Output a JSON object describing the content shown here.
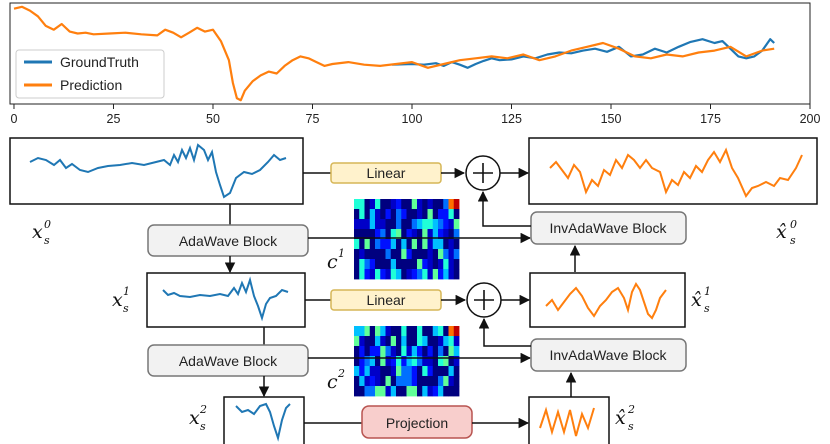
{
  "chart_data": {
    "type": "line",
    "title": "",
    "xlabel": "",
    "ylabel": "",
    "xlim": [
      -1,
      200
    ],
    "x_ticks": [
      0,
      25,
      50,
      75,
      100,
      125,
      150,
      175,
      200
    ],
    "legend_position": "bottom-left",
    "grid": false,
    "series": [
      {
        "name": "GroundTruth",
        "color": "#1f77b4",
        "x": [
          95,
          100,
          103,
          106,
          108,
          110,
          112,
          114,
          116,
          118,
          120,
          122,
          125,
          128,
          131,
          134,
          137,
          140,
          143,
          146,
          149,
          152,
          155,
          158,
          161,
          164,
          167,
          170,
          173,
          176,
          178,
          180,
          182,
          184,
          186,
          188,
          190,
          191
        ],
        "y": [
          -0.12,
          -0.1,
          -0.12,
          -0.08,
          -0.15,
          -0.05,
          -0.12,
          -0.2,
          -0.1,
          -0.02,
          0.05,
          0.0,
          0.02,
          0.1,
          0.05,
          0.15,
          0.2,
          0.18,
          0.25,
          0.3,
          0.22,
          0.35,
          0.1,
          0.15,
          0.3,
          0.2,
          0.35,
          0.48,
          0.55,
          0.45,
          0.5,
          0.3,
          0.1,
          0.05,
          0.1,
          0.25,
          0.55,
          0.45
        ]
      },
      {
        "name": "Prediction",
        "color": "#ff7f0e",
        "x": [
          0,
          2,
          4,
          6,
          8,
          10,
          12,
          14,
          16,
          18,
          20,
          24,
          28,
          32,
          36,
          38,
          40,
          42,
          44,
          46,
          48,
          50,
          52,
          54,
          55,
          56,
          57,
          58,
          60,
          62,
          64,
          66,
          68,
          70,
          72,
          74,
          76,
          78,
          80,
          84,
          88,
          92,
          96,
          100,
          104,
          108,
          112,
          116,
          120,
          124,
          128,
          132,
          136,
          140,
          144,
          148,
          152,
          156,
          160,
          164,
          168,
          172,
          176,
          180,
          184,
          188,
          191
        ],
        "y": [
          1.35,
          1.4,
          1.3,
          1.15,
          0.9,
          0.8,
          0.95,
          0.75,
          0.7,
          0.72,
          0.68,
          0.7,
          0.72,
          0.68,
          0.65,
          0.8,
          0.72,
          0.6,
          0.72,
          0.85,
          0.75,
          0.8,
          0.5,
          0.0,
          -0.6,
          -1.0,
          -1.05,
          -0.8,
          -0.55,
          -0.4,
          -0.3,
          -0.35,
          -0.15,
          0.0,
          0.1,
          0.05,
          -0.05,
          -0.15,
          -0.1,
          -0.05,
          -0.12,
          -0.15,
          -0.1,
          -0.05,
          -0.2,
          -0.1,
          0.0,
          0.05,
          0.1,
          0.05,
          0.15,
          0.0,
          0.1,
          0.25,
          0.35,
          0.45,
          0.3,
          0.1,
          0.05,
          0.15,
          0.1,
          0.2,
          0.25,
          0.35,
          0.1,
          0.25,
          0.3
        ]
      }
    ]
  },
  "diagram": {
    "blocks": {
      "linear_top": "Linear",
      "linear_mid": "Linear",
      "adawave_top": "AdaWave Block",
      "adawave_mid": "AdaWave Block",
      "invadawave_top": "InvAdaWave Block",
      "invadawave_mid": "InvAdaWave Block",
      "projection": "Projection"
    },
    "symbols": {
      "plus": "+",
      "x_base": "x",
      "xhat_base": "x̂",
      "sub_s": "s",
      "sup_0": "0",
      "sup_1": "1",
      "sup_2": "2",
      "c_base": "c",
      "c_sup_1": "1",
      "c_sup_2": "2"
    },
    "colors": {
      "input_signal": "#1f77b4",
      "output_signal": "#ff7f0e",
      "linear_fill": "#fff2cc",
      "linear_stroke": "#d6b656",
      "block_fill": "#f2f2f2",
      "block_stroke": "#777777",
      "projection_fill": "#f8cecc",
      "projection_stroke": "#b85450"
    }
  }
}
